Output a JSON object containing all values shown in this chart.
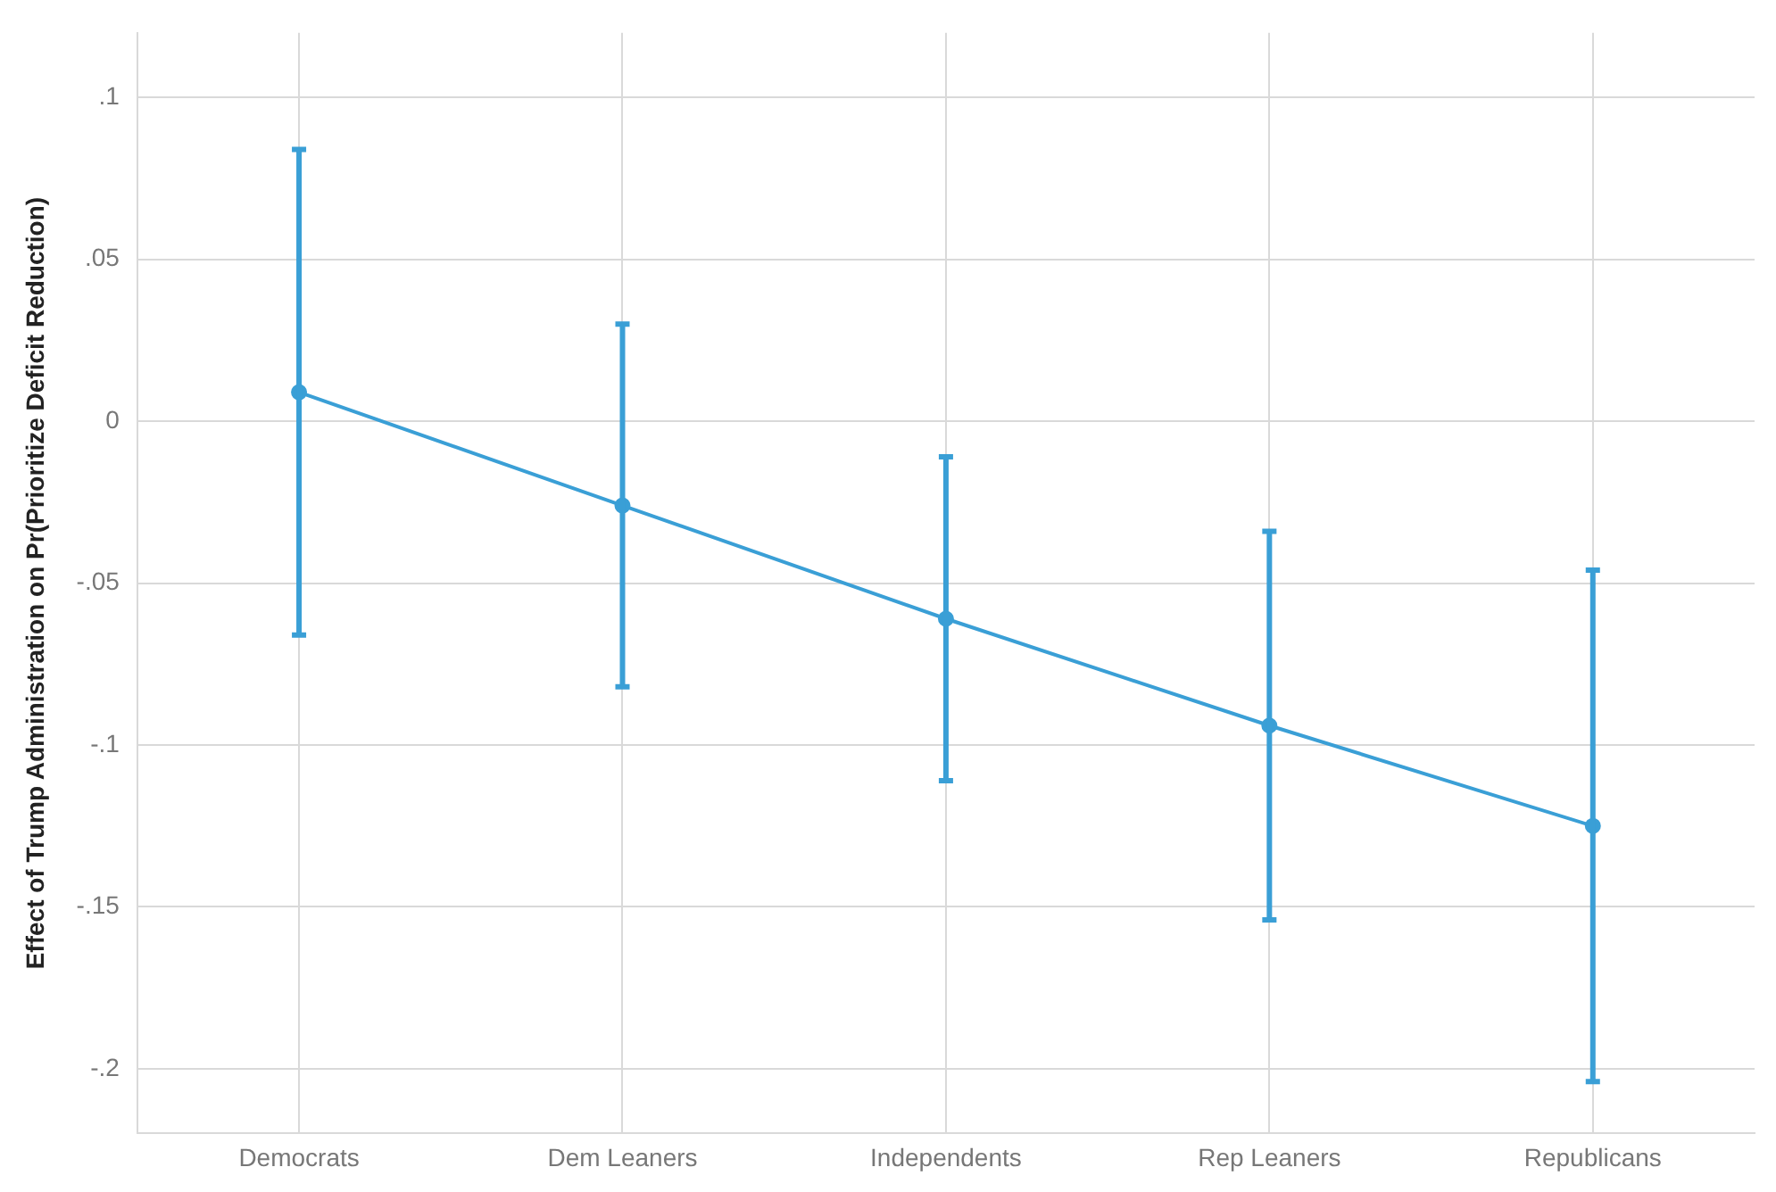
{
  "chart_data": {
    "type": "line",
    "ylabel": "Effect of Trump Administration on Pr(Prioritize Deficit Reduction)",
    "categories": [
      "Democrats",
      "Dem Leaners",
      "Independents",
      "Rep Leaners",
      "Republicans"
    ],
    "series": [
      {
        "color": "#3a9fd6",
        "values": [
          0.009,
          -0.026,
          -0.061,
          -0.094,
          -0.125
        ],
        "errors": [
          [
            -0.066,
            0.084
          ],
          [
            -0.082,
            0.03
          ],
          [
            -0.111,
            -0.011
          ],
          [
            -0.154,
            -0.034
          ],
          [
            -0.204,
            -0.046
          ]
        ]
      }
    ],
    "ylim": [
      -0.22,
      0.12
    ],
    "yticks": [
      {
        "value": -0.2,
        "label": "-.2"
      },
      {
        "value": -0.15,
        "label": "-.15"
      },
      {
        "value": -0.1,
        "label": "-.1"
      },
      {
        "value": -0.05,
        "label": "-.05"
      },
      {
        "value": 0,
        "label": "0"
      },
      {
        "value": 0.05,
        "label": ".05"
      },
      {
        "value": 0.1,
        "label": ".1"
      }
    ],
    "grid": true,
    "legend": false,
    "marker": "circle",
    "line_style": "solid"
  }
}
